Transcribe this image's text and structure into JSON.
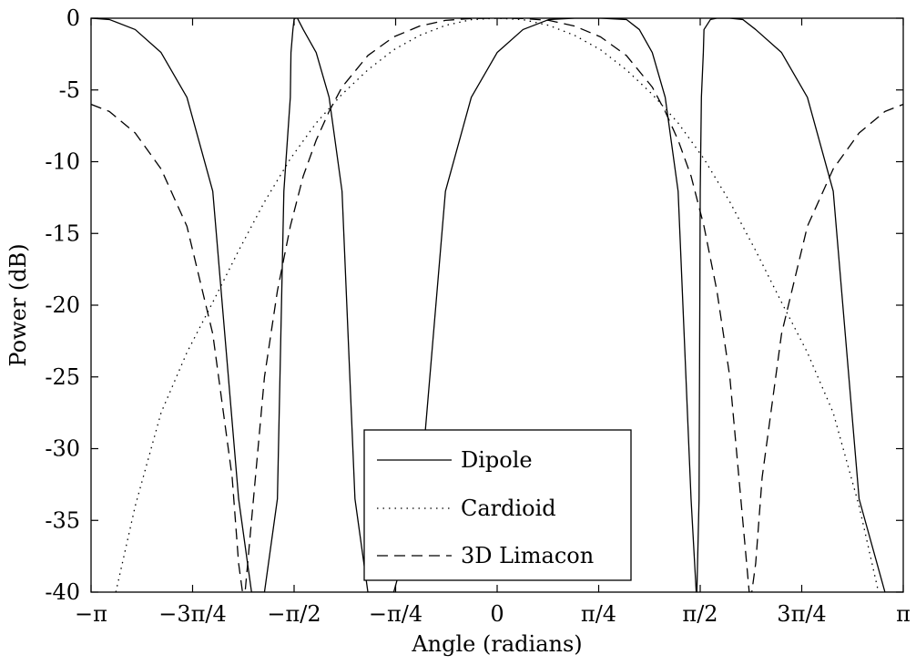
{
  "chart_data": {
    "type": "line",
    "title": "",
    "xlabel": "Angle (radians)",
    "ylabel": "Power (dB)",
    "xlim": [
      -3.14159265,
      3.14159265
    ],
    "ylim": [
      -40,
      0
    ],
    "x_ticks": [
      {
        "value": -3.14159265,
        "label": "−π"
      },
      {
        "value": -2.35619449,
        "label": "−3π/4"
      },
      {
        "value": -1.57079633,
        "label": "−π/2"
      },
      {
        "value": -0.78539816,
        "label": "−π/4"
      },
      {
        "value": 0,
        "label": "0"
      },
      {
        "value": 0.78539816,
        "label": "π/4"
      },
      {
        "value": 1.57079633,
        "label": "π/2"
      },
      {
        "value": 2.35619449,
        "label": "3π/4"
      },
      {
        "value": 3.14159265,
        "label": "π"
      }
    ],
    "y_ticks": [
      {
        "value": 0,
        "label": "0"
      },
      {
        "value": -5,
        "label": "-5"
      },
      {
        "value": -10,
        "label": "-10"
      },
      {
        "value": -15,
        "label": "-15"
      },
      {
        "value": -20,
        "label": "-20"
      },
      {
        "value": -25,
        "label": "-25"
      },
      {
        "value": -30,
        "label": "-30"
      },
      {
        "value": -35,
        "label": "-35"
      },
      {
        "value": -40,
        "label": "-40"
      }
    ],
    "grid": false,
    "legend_position": "bottom-center",
    "series": [
      {
        "name": "Dipole",
        "style": "solid",
        "color": "#000000",
        "x": [
          -3.1416,
          -3.0,
          -2.8,
          -2.6,
          -2.4,
          -2.2,
          -2.0,
          -1.9,
          -1.8,
          -1.7,
          -1.65,
          -1.6,
          -1.595,
          -1.58,
          -1.571,
          -1.562,
          -1.545,
          -1.54,
          -1.5,
          -1.4,
          -1.3,
          -1.2,
          -1.1,
          -1.0,
          -0.8,
          -0.6,
          -0.4,
          -0.2,
          0.0,
          0.2,
          0.4,
          0.6,
          0.8,
          1.0,
          1.1,
          1.2,
          1.3,
          1.4,
          1.5,
          1.54,
          1.545,
          1.562,
          1.571,
          1.58,
          1.595,
          1.6,
          1.65,
          1.7,
          1.8,
          1.9,
          2.0,
          2.2,
          2.4,
          2.6,
          2.8,
          3.0,
          3.1416
        ],
        "y": [
          0.0,
          -0.09,
          -0.79,
          -2.39,
          -5.51,
          -12.06,
          -33.5,
          -40.0,
          -40.0,
          -33.5,
          -12.06,
          -5.51,
          -2.39,
          -0.79,
          -0.09,
          0.0,
          0.0,
          -0.09,
          -0.79,
          -2.39,
          -5.51,
          -12.06,
          -33.5,
          -40.0,
          -40.0,
          -33.5,
          -12.06,
          -5.51,
          -2.39,
          -0.79,
          -0.09,
          0.0,
          0.0,
          -0.09,
          -0.79,
          -2.39,
          -5.51,
          -12.06,
          -33.5,
          -40.0,
          -40.0,
          -33.5,
          -12.06,
          -5.51,
          -2.39,
          -0.79,
          -0.09,
          0.0,
          0.0,
          -0.09,
          -0.79,
          -2.39,
          -5.51,
          -12.06,
          -33.5,
          -40.0,
          -40.0
        ]
      },
      {
        "name": "Cardioid",
        "style": "dotted",
        "color": "#000000",
        "x": [
          -2.95,
          -2.9,
          -2.8,
          -2.6,
          -2.4,
          -2.2,
          -2.0,
          -1.8,
          -1.6,
          -1.4,
          -1.2,
          -1.0,
          -0.8,
          -0.6,
          -0.4,
          -0.2,
          0.0,
          0.2,
          0.4,
          0.6,
          0.8,
          1.0,
          1.2,
          1.4,
          1.6,
          1.8,
          2.0,
          2.2,
          2.4,
          2.6,
          2.8,
          2.9,
          2.95
        ],
        "y": [
          -40.0,
          -38.0,
          -34.0,
          -27.5,
          -23.3,
          -19.8,
          -16.2,
          -12.8,
          -9.8,
          -7.3,
          -5.3,
          -3.6,
          -2.2,
          -1.2,
          -0.5,
          -0.1,
          0.0,
          -0.1,
          -0.5,
          -1.2,
          -2.2,
          -3.6,
          -5.3,
          -7.3,
          -9.8,
          -12.8,
          -16.2,
          -19.8,
          -23.3,
          -27.5,
          -34.0,
          -38.0,
          -40.0
        ]
      },
      {
        "name": "3D Limacon",
        "style": "dashed",
        "color": "#000000",
        "x": [
          -3.1416,
          -3.0,
          -2.8,
          -2.6,
          -2.4,
          -2.2,
          -2.05,
          -2.0,
          -1.97,
          -1.95,
          -1.9,
          -1.8,
          -1.7,
          -1.6,
          -1.5,
          -1.4,
          -1.3,
          -1.2,
          -1.0,
          -0.8,
          -0.6,
          -0.4,
          -0.2,
          0.0,
          0.2,
          0.4,
          0.6,
          0.8,
          1.0,
          1.2,
          1.3,
          1.4,
          1.5,
          1.6,
          1.7,
          1.8,
          1.9,
          1.95,
          1.97,
          2.0,
          2.05,
          2.2,
          2.4,
          2.6,
          2.8,
          3.0,
          3.1416
        ],
        "y": [
          -6.0,
          -6.5,
          -8.0,
          -10.5,
          -14.5,
          -22.0,
          -32.0,
          -38.0,
          -40.0,
          -40.0,
          -35.0,
          -25.0,
          -19.0,
          -14.5,
          -11.0,
          -8.5,
          -6.5,
          -4.8,
          -2.6,
          -1.3,
          -0.55,
          -0.15,
          -0.02,
          0.0,
          -0.02,
          -0.15,
          -0.55,
          -1.3,
          -2.6,
          -4.8,
          -6.5,
          -8.5,
          -11.0,
          -14.5,
          -19.0,
          -25.0,
          -35.0,
          -40.0,
          -40.0,
          -38.0,
          -32.0,
          -22.0,
          -14.5,
          -10.5,
          -8.0,
          -6.5,
          -6.0
        ]
      }
    ]
  }
}
